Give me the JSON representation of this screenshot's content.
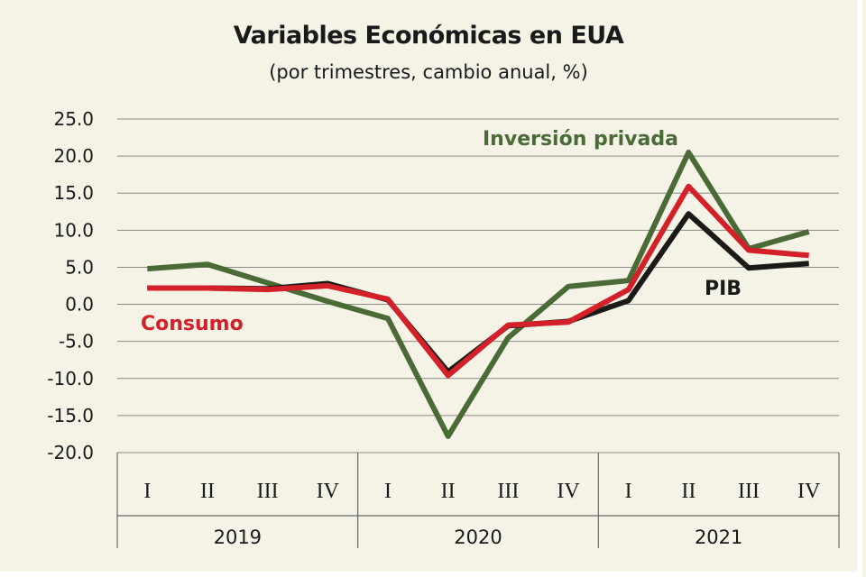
{
  "chart_data": {
    "type": "line",
    "title": "Variables Económicas en EUA",
    "subtitle": "(por trimestres, cambio anual, %)",
    "ylim": [
      -20,
      25
    ],
    "yticks": [
      25,
      20,
      15,
      10,
      5,
      0,
      -5,
      -10,
      -15,
      -20
    ],
    "ytick_labels": [
      "25.0",
      "20.0",
      "15.0",
      "10.0",
      "5.0",
      "0.0",
      "-5.0",
      "-10.0",
      "-15.0",
      "-20.0"
    ],
    "quarters": [
      "I",
      "II",
      "III",
      "IV",
      "I",
      "II",
      "III",
      "IV",
      "I",
      "II",
      "III",
      "IV"
    ],
    "years": [
      "2019",
      "2020",
      "2021"
    ],
    "grid": true,
    "series": [
      {
        "name": "Inversión privada",
        "color": "#4a6b36",
        "values": [
          4.8,
          5.4,
          2.9,
          0.4,
          -1.9,
          -17.8,
          -4.5,
          2.4,
          3.2,
          20.5,
          7.5,
          9.8
        ]
      },
      {
        "name": "PIB",
        "color": "#1a1a16",
        "values": [
          2.2,
          2.2,
          2.1,
          2.8,
          0.6,
          -9.1,
          -2.9,
          -2.3,
          0.5,
          12.2,
          4.9,
          5.5
        ]
      },
      {
        "name": "Consumo",
        "color": "#d32029",
        "values": [
          2.2,
          2.2,
          2.0,
          2.5,
          0.7,
          -9.6,
          -2.8,
          -2.4,
          2.0,
          15.9,
          7.3,
          6.6
        ]
      }
    ]
  }
}
